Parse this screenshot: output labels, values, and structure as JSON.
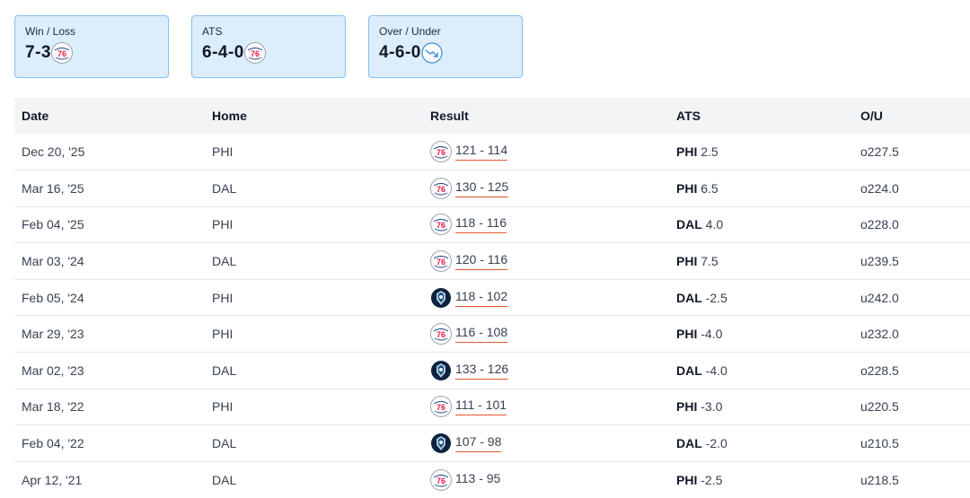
{
  "summary": [
    {
      "label": "Win / Loss",
      "value": "7-3",
      "icon": "76ers-logo-icon"
    },
    {
      "label": "ATS",
      "value": "6-4-0",
      "icon": "76ers-logo-icon"
    },
    {
      "label": "Over / Under",
      "value": "4-6-0",
      "icon": "trending-down-icon"
    }
  ],
  "table": {
    "headers": {
      "date": "Date",
      "home": "Home",
      "result": "Result",
      "ats": "ATS",
      "ou": "O/U"
    },
    "rows": [
      {
        "date": "Dec 20, '25",
        "home": "PHI",
        "winner": "76ers",
        "score": "121 - 114",
        "ats_team": "PHI",
        "ats_line": "2.5",
        "ou": "o227.5"
      },
      {
        "date": "Mar 16, '25",
        "home": "DAL",
        "winner": "76ers",
        "score": "130 - 125",
        "ats_team": "PHI",
        "ats_line": "6.5",
        "ou": "o224.0"
      },
      {
        "date": "Feb 04, '25",
        "home": "PHI",
        "winner": "76ers",
        "score": "118 - 116",
        "ats_team": "DAL",
        "ats_line": "4.0",
        "ou": "o228.0"
      },
      {
        "date": "Mar 03, '24",
        "home": "DAL",
        "winner": "76ers",
        "score": "120 - 116",
        "ats_team": "PHI",
        "ats_line": "7.5",
        "ou": "u239.5"
      },
      {
        "date": "Feb 05, '24",
        "home": "PHI",
        "winner": "mavericks",
        "score": "118 - 102",
        "ats_team": "DAL",
        "ats_line": "-2.5",
        "ou": "u242.0"
      },
      {
        "date": "Mar 29, '23",
        "home": "PHI",
        "winner": "76ers",
        "score": "116 - 108",
        "ats_team": "PHI",
        "ats_line": "-4.0",
        "ou": "u232.0"
      },
      {
        "date": "Mar 02, '23",
        "home": "DAL",
        "winner": "mavericks",
        "score": "133 - 126",
        "ats_team": "DAL",
        "ats_line": "-4.0",
        "ou": "o228.5"
      },
      {
        "date": "Mar 18, '22",
        "home": "PHI",
        "winner": "76ers",
        "score": "111 - 101",
        "ats_team": "PHI",
        "ats_line": "-3.0",
        "ou": "u220.5"
      },
      {
        "date": "Feb 04, '22",
        "home": "DAL",
        "winner": "mavericks",
        "score": "107 - 98",
        "ats_team": "DAL",
        "ats_line": "-2.0",
        "ou": "u210.5"
      },
      {
        "date": "Apr 12, '21",
        "home": "DAL",
        "winner": "76ers",
        "score": "113 - 95",
        "ats_team": "PHI",
        "ats_line": "-2.5",
        "ou": "u218.5"
      }
    ]
  },
  "colors": {
    "card_bg": "#dcedfc",
    "card_border": "#86bff0",
    "header_bg": "#f3f4f6",
    "score_underline": "#e4572e",
    "sixers_blue": "#1d428a",
    "sixers_red": "#ed174c",
    "mavs_navy": "#0b2240",
    "trend_blue": "#3b8fd9"
  }
}
